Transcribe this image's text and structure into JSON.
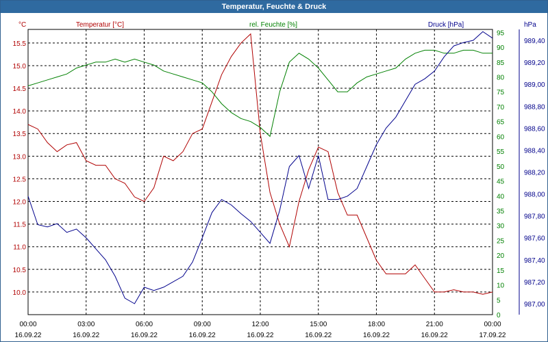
{
  "window": {
    "title": "Temperatur, Feuchte & Druck"
  },
  "chart_data": {
    "type": "line",
    "title": "Temperatur, Feuchte & Druck",
    "grid": true,
    "colors": {
      "temperature": "#b00000",
      "humidity": "#008000",
      "pressure": "#00008b",
      "grid": "#000000"
    },
    "x_ticks": [
      {
        "time": "00:00",
        "date": "16.09.22"
      },
      {
        "time": "03:00",
        "date": "16.09.22"
      },
      {
        "time": "06:00",
        "date": "16.09.22"
      },
      {
        "time": "09:00",
        "date": "16.09.22"
      },
      {
        "time": "12:00",
        "date": "16.09.22"
      },
      {
        "time": "15:00",
        "date": "16.09.22"
      },
      {
        "time": "18:00",
        "date": "16.09.22"
      },
      {
        "time": "21:00",
        "date": "16.09.22"
      },
      {
        "time": "00:00",
        "date": "17.09.22"
      }
    ],
    "axes": {
      "temperature": {
        "label": "Temperatur [°C]",
        "unit": "°C",
        "ylim": [
          9.5,
          15.8
        ],
        "ticks": [
          "10.0",
          "10.5",
          "11.0",
          "11.5",
          "12.0",
          "12.5",
          "13.0",
          "13.5",
          "14.0",
          "14.5",
          "15.0",
          "15.5"
        ]
      },
      "humidity": {
        "label": "rel. Feuchte [%]",
        "unit": "%",
        "ylim": [
          0,
          96
        ],
        "ticks": [
          "0",
          "5",
          "10",
          "15",
          "20",
          "25",
          "30",
          "35",
          "40",
          "45",
          "50",
          "55",
          "60",
          "65",
          "70",
          "75",
          "80",
          "85",
          "90",
          "95"
        ]
      },
      "pressure": {
        "label": "Druck [hPa]",
        "unit": "hPa",
        "ylim": [
          986.9,
          989.5
        ],
        "ticks": [
          "987,00",
          "987,20",
          "987,40",
          "987,60",
          "987,80",
          "988,00",
          "988,20",
          "988,40",
          "988,60",
          "988,80",
          "989,00",
          "989,20",
          "989,40"
        ]
      }
    },
    "series": [
      {
        "name": "Temperatur [°C]",
        "axis": "temperature",
        "x": [
          0,
          0.5,
          1,
          1.5,
          2,
          2.5,
          3,
          3.5,
          4,
          4.5,
          5,
          5.5,
          6,
          6.5,
          7,
          7.5,
          8,
          8.5,
          9,
          9.5,
          10,
          10.5,
          11,
          11.5,
          12,
          12.5,
          13,
          13.5,
          14,
          14.5,
          15,
          15.5,
          16,
          16.5,
          17,
          17.5,
          18,
          18.5,
          19,
          19.5,
          20,
          20.5,
          21,
          21.5,
          22,
          22.5,
          23,
          23.5,
          24
        ],
        "y": [
          13.7,
          13.6,
          13.3,
          13.1,
          13.25,
          13.3,
          12.9,
          12.8,
          12.8,
          12.5,
          12.4,
          12.1,
          12.0,
          12.3,
          13.0,
          12.9,
          13.1,
          13.5,
          13.6,
          14.2,
          14.8,
          15.2,
          15.5,
          15.7,
          13.5,
          12.2,
          11.5,
          11.0,
          12.0,
          12.7,
          13.2,
          13.1,
          12.2,
          11.7,
          11.7,
          11.2,
          10.7,
          10.4,
          10.4,
          10.4,
          10.6,
          10.3,
          10.0,
          10.0,
          10.05,
          10.0,
          10.0,
          9.95,
          10.0
        ]
      },
      {
        "name": "rel. Feuchte [%]",
        "axis": "humidity",
        "x": [
          0,
          0.5,
          1,
          1.5,
          2,
          2.5,
          3,
          3.5,
          4,
          4.5,
          5,
          5.5,
          6,
          6.5,
          7,
          7.5,
          8,
          8.5,
          9,
          9.5,
          10,
          10.5,
          11,
          11.5,
          12,
          12.5,
          13,
          13.5,
          14,
          14.5,
          15,
          15.5,
          16,
          16.5,
          17,
          17.5,
          18,
          18.5,
          19,
          19.5,
          20,
          20.5,
          21,
          21.5,
          22,
          22.5,
          23,
          23.5,
          24
        ],
        "y": [
          77,
          78,
          79,
          80,
          81,
          83,
          84,
          85,
          85,
          86,
          85,
          86,
          85,
          84,
          82,
          81,
          80,
          79,
          78,
          75,
          71,
          68,
          66,
          65,
          63,
          60,
          75,
          85,
          88,
          86,
          83,
          79,
          75,
          75,
          78,
          80,
          81,
          82,
          83,
          86,
          88,
          89,
          89,
          88,
          88,
          89,
          89,
          88,
          88
        ]
      },
      {
        "name": "Druck [hPa]",
        "axis": "pressure",
        "x": [
          0,
          0.5,
          1,
          1.5,
          2,
          2.5,
          3,
          3.5,
          4,
          4.5,
          5,
          5.5,
          6,
          6.5,
          7,
          7.5,
          8,
          8.5,
          9,
          9.5,
          10,
          10.5,
          11,
          11.5,
          12,
          12.5,
          13,
          13.5,
          14,
          14.5,
          15,
          15.5,
          16,
          16.5,
          17,
          17.5,
          18,
          18.5,
          19,
          19.5,
          20,
          20.5,
          21,
          21.5,
          22,
          22.5,
          23,
          23.5,
          24
        ],
        "y": [
          987.98,
          987.72,
          987.7,
          987.73,
          987.65,
          987.68,
          987.6,
          987.5,
          987.4,
          987.25,
          987.05,
          987.0,
          987.15,
          987.12,
          987.15,
          987.2,
          987.25,
          987.38,
          987.6,
          987.83,
          987.95,
          987.9,
          987.82,
          987.75,
          987.65,
          987.55,
          987.85,
          988.25,
          988.35,
          988.05,
          988.35,
          987.95,
          987.95,
          987.98,
          988.05,
          988.25,
          988.45,
          988.6,
          988.7,
          988.85,
          989.0,
          989.05,
          989.12,
          989.25,
          989.35,
          989.38,
          989.4,
          989.48,
          989.42
        ]
      }
    ]
  }
}
